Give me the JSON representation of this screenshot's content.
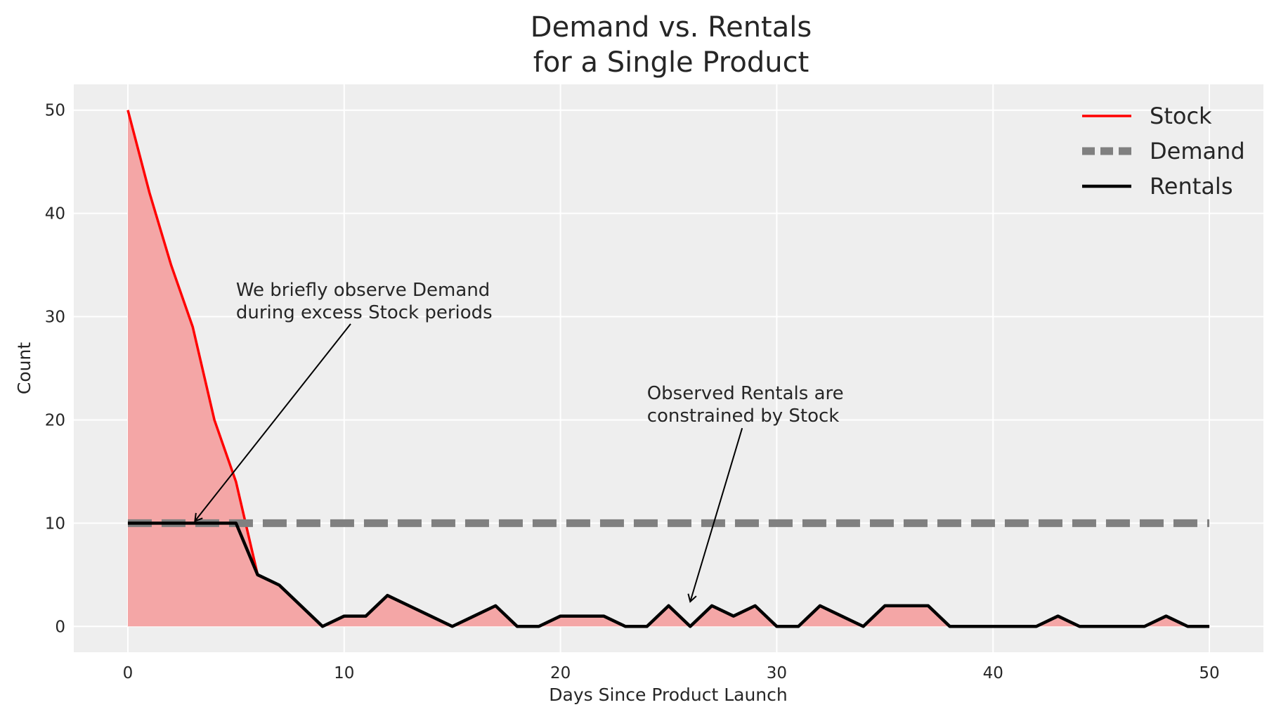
{
  "chart_data": {
    "type": "line",
    "title_line1": "Demand vs. Rentals",
    "title_line2": "for a Single Product",
    "xlabel": "Days Since Product Launch",
    "ylabel": "Count",
    "xlim": [
      -2.5,
      52.5
    ],
    "ylim": [
      -2.5,
      52.5
    ],
    "xticks": [
      0,
      10,
      20,
      30,
      40,
      50
    ],
    "yticks": [
      0,
      10,
      20,
      30,
      40,
      50
    ],
    "grid": true,
    "legend_position": "top-right",
    "x": [
      0,
      1,
      2,
      3,
      4,
      5,
      6,
      7,
      8,
      9,
      10,
      11,
      12,
      13,
      14,
      15,
      16,
      17,
      18,
      19,
      20,
      21,
      22,
      23,
      24,
      25,
      26,
      27,
      28,
      29,
      30,
      31,
      32,
      33,
      34,
      35,
      36,
      37,
      38,
      39,
      40,
      41,
      42,
      43,
      44,
      45,
      46,
      47,
      48,
      49,
      50
    ],
    "series": [
      {
        "name": "Stock",
        "color": "#ff0000",
        "fill": "#f4a6a6",
        "values": [
          50,
          42,
          35,
          29,
          20,
          14,
          5,
          4,
          2,
          0,
          1,
          1,
          3,
          2,
          1,
          0,
          1,
          2,
          0,
          0,
          1,
          1,
          1,
          0,
          0,
          2,
          0,
          2,
          1,
          2,
          0,
          0,
          2,
          1,
          0,
          2,
          2,
          2,
          0,
          0,
          0,
          0,
          0,
          1,
          0,
          0,
          0,
          0,
          1,
          0,
          0
        ]
      },
      {
        "name": "Demand",
        "color": "#808080",
        "values": [
          10,
          10,
          10,
          10,
          10,
          10,
          10,
          10,
          10,
          10,
          10,
          10,
          10,
          10,
          10,
          10,
          10,
          10,
          10,
          10,
          10,
          10,
          10,
          10,
          10,
          10,
          10,
          10,
          10,
          10,
          10,
          10,
          10,
          10,
          10,
          10,
          10,
          10,
          10,
          10,
          10,
          10,
          10,
          10,
          10,
          10,
          10,
          10,
          10,
          10,
          10
        ]
      },
      {
        "name": "Rentals",
        "color": "#000000",
        "values": [
          10,
          10,
          10,
          10,
          10,
          10,
          5,
          4,
          2,
          0,
          1,
          1,
          3,
          2,
          1,
          0,
          1,
          2,
          0,
          0,
          1,
          1,
          1,
          0,
          0,
          2,
          0,
          2,
          1,
          2,
          0,
          0,
          2,
          1,
          0,
          2,
          2,
          2,
          0,
          0,
          0,
          0,
          0,
          1,
          0,
          0,
          0,
          0,
          1,
          0,
          0
        ]
      }
    ],
    "annotations": [
      {
        "lines": [
          "We briefly observe Demand",
          "during excess Stock periods"
        ],
        "text_x": 5,
        "text_y": 32,
        "arrow_from": [
          10.3,
          29.3
        ],
        "arrow_to": [
          3.1,
          10.2
        ]
      },
      {
        "lines": [
          "Observed Rentals are",
          "constrained by Stock"
        ],
        "text_x": 24,
        "text_y": 22,
        "arrow_from": [
          28.4,
          19.2
        ],
        "arrow_to": [
          26,
          2.4
        ]
      }
    ]
  }
}
